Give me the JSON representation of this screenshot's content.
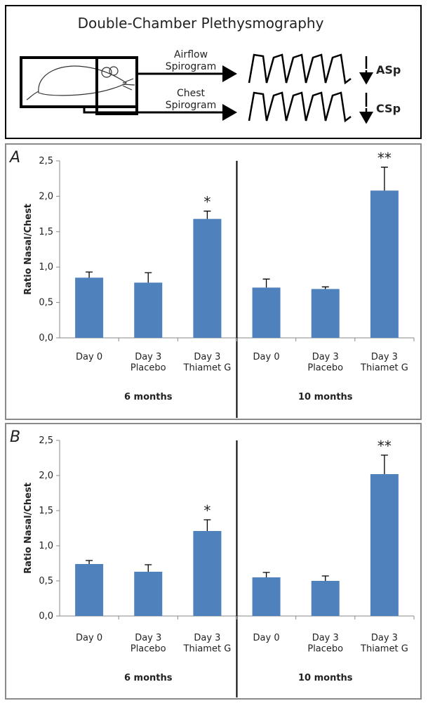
{
  "diagram": {
    "title": "Double-Chamber Plethysmography",
    "airflow": "Airflow\nSpirogram",
    "chest": "Chest\nSpirogram",
    "asp": "ASp",
    "csp": "CSp"
  },
  "chart_data": [
    {
      "type": "bar",
      "panel": "A",
      "y_label": "Ratio Nasal/Chest",
      "color": "#4f81bd",
      "categories": [
        "Day 0",
        "Day 3\nPlacebo",
        "Day 3\nThiamet G",
        "Day 0",
        "Day 3\nPlacebo",
        "Day 3\nThiamet G"
      ],
      "group_labels": [
        "6 months",
        "10 months"
      ],
      "values": [
        0.85,
        0.78,
        1.68,
        0.71,
        0.69,
        2.08
      ],
      "errors": [
        0.08,
        0.14,
        0.11,
        0.12,
        0.03,
        0.33
      ],
      "markers": [
        null,
        null,
        "*",
        null,
        null,
        "**"
      ],
      "ylim": [
        0,
        2.5
      ],
      "yticks": [
        {
          "value": 0,
          "label": "0,0"
        },
        {
          "value": 0.5,
          "label": "0,5"
        },
        {
          "value": 1,
          "label": "1,0"
        },
        {
          "value": 1.5,
          "label": "1,5"
        },
        {
          "value": 2,
          "label": "2,0"
        },
        {
          "value": 2.5,
          "label": "2,5"
        }
      ]
    },
    {
      "type": "bar",
      "panel": "B",
      "y_label": "Ratio Nasal/Chest",
      "color": "#4f81bd",
      "categories": [
        "Day 0",
        "Day 3\nPlacebo",
        "Day 3\nThiamet G",
        "Day 0",
        "Day 3\nPlacebo",
        "Day 3\nThiamet G"
      ],
      "group_labels": [
        "6 months",
        "10 months"
      ],
      "values": [
        0.74,
        0.63,
        1.21,
        0.55,
        0.5,
        2.02
      ],
      "errors": [
        0.05,
        0.1,
        0.16,
        0.07,
        0.07,
        0.27
      ],
      "markers": [
        null,
        null,
        "*",
        null,
        null,
        "**"
      ],
      "ylim": [
        0,
        2.5
      ],
      "yticks": [
        {
          "value": 0,
          "label": "0,0"
        },
        {
          "value": 0.5,
          "label": "0,5"
        },
        {
          "value": 1,
          "label": "1,0"
        },
        {
          "value": 1.5,
          "label": "1,5"
        },
        {
          "value": 2,
          "label": "2,0"
        },
        {
          "value": 2.5,
          "label": "2,5"
        }
      ]
    }
  ]
}
